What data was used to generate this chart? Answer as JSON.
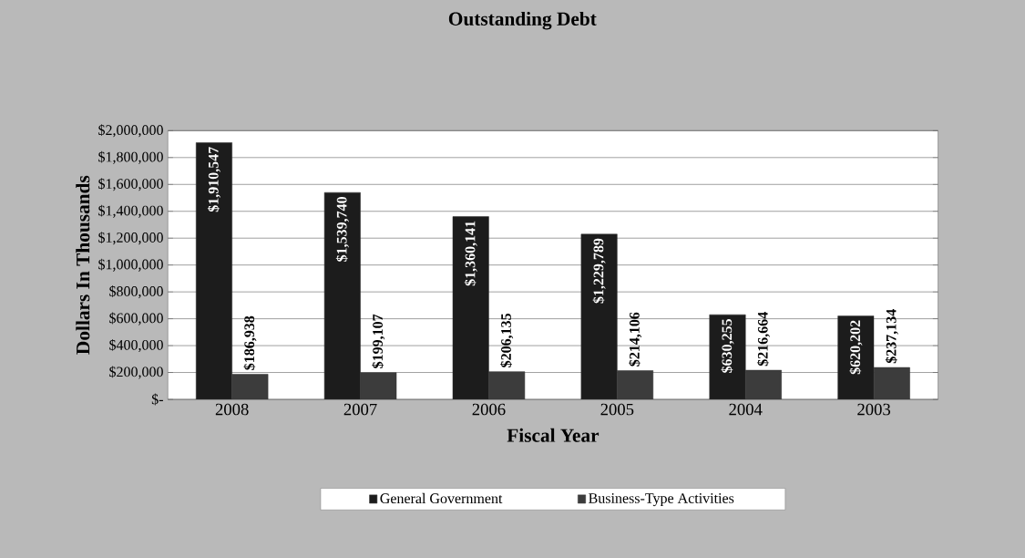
{
  "chart_data": {
    "type": "bar",
    "title": "Outstanding Debt",
    "xlabel": "Fiscal Year",
    "ylabel": "Dollars In Thousands",
    "categories": [
      "2008",
      "2007",
      "2006",
      "2005",
      "2004",
      "2003"
    ],
    "series": [
      {
        "name": "General Government",
        "color": "#1c1c1c",
        "values": [
          1910547,
          1539740,
          1360141,
          1229789,
          630255,
          620202
        ],
        "value_labels": [
          "$1,910,547",
          "$1,539,740",
          "$1,360,141",
          "$1,229,789",
          "$630,255",
          "$620,202"
        ]
      },
      {
        "name": "Business-Type Activities",
        "color": "#3c3c3c",
        "values": [
          186938,
          199107,
          206135,
          214106,
          216664,
          237134
        ],
        "value_labels": [
          "$186,938",
          "$199,107",
          "$206,135",
          "$214,106",
          "$216,664",
          "$237,134"
        ]
      }
    ],
    "ylim": [
      0,
      2000000
    ],
    "yticks": [
      {
        "value": 0,
        "label": "$-"
      },
      {
        "value": 200000,
        "label": "$200,000"
      },
      {
        "value": 400000,
        "label": "$400,000"
      },
      {
        "value": 600000,
        "label": "$600,000"
      },
      {
        "value": 800000,
        "label": "$800,000"
      },
      {
        "value": 1000000,
        "label": "$1,000,000"
      },
      {
        "value": 1200000,
        "label": "$1,200,000"
      },
      {
        "value": 1400000,
        "label": "$1,400,000"
      },
      {
        "value": 1600000,
        "label": "$1,600,000"
      },
      {
        "value": 1800000,
        "label": "$1,800,000"
      },
      {
        "value": 2000000,
        "label": "$2,000,000"
      }
    ],
    "grid": "y",
    "legend": "bottom"
  }
}
